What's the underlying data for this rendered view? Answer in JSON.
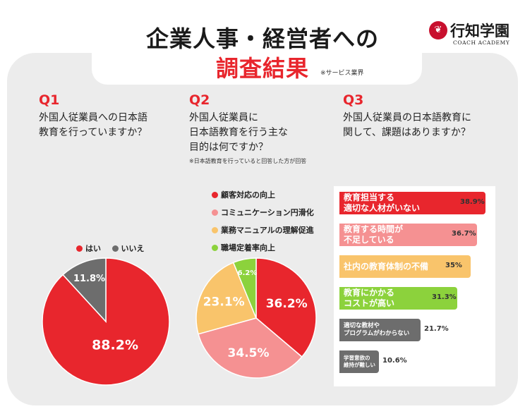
{
  "header": {
    "title_line1": "企業人事・経営者への",
    "title_line2": "調査結果",
    "title_note": "※サービス業界"
  },
  "logo": {
    "icon_name": "tree-seal-icon",
    "name": "行知学園",
    "sub": "COACH ACADEMY"
  },
  "questions": [
    {
      "label": "Q1",
      "text": "外国人従業員への日本語\n教育を行っていますか？",
      "note": ""
    },
    {
      "label": "Q2",
      "text": "外国人従業員に\n日本語教育を行う主な\n目的は何ですか？",
      "note": "※日本語教育を行っていると回答した方が回答"
    },
    {
      "label": "Q3",
      "text": "外国人従業員の日本語教育に\n関して、課題はありますか？",
      "note": ""
    }
  ],
  "chart_data": [
    {
      "type": "pie",
      "question": "Q1",
      "slices": [
        {
          "label": "はい",
          "value": 88.2,
          "display": "88.2%",
          "color": "#e8262d"
        },
        {
          "label": "いいえ",
          "value": 11.8,
          "display": "11.8%",
          "color": "#6d6d6d"
        }
      ],
      "legend_placement": "top"
    },
    {
      "type": "pie",
      "question": "Q2",
      "slices": [
        {
          "label": "顧客対応の向上",
          "value": 36.2,
          "display": "36.2%",
          "color": "#e8262d"
        },
        {
          "label": "コミュニケーション円滑化",
          "value": 34.5,
          "display": "34.5%",
          "color": "#f59192"
        },
        {
          "label": "業務マニュアルの理解促進",
          "value": 23.1,
          "display": "23.1%",
          "color": "#f9c46b"
        },
        {
          "label": "職場定着率向上",
          "value": 6.2,
          "display": "6.2%",
          "color": "#8cd23c"
        }
      ],
      "legend_placement": "top-left"
    },
    {
      "type": "bar",
      "question": "Q3",
      "orientation": "horizontal",
      "categories": [
        "教育担当する\n適切な人材がいない",
        "教育する時間が\n不足している",
        "社内の教育体制の不備",
        "教育にかかる\nコストが高い",
        "適切な教材や\nプログラムがわからない",
        "学習意欲の\n維持が難しい"
      ],
      "values": [
        38.9,
        36.7,
        35,
        31.3,
        21.7,
        10.6
      ],
      "display": [
        "38.9%",
        "36.7%",
        "35%",
        "31.3%",
        "21.7%",
        "10.6%"
      ],
      "colors": [
        "#e8262d",
        "#f59192",
        "#f9c46b",
        "#8cd23c",
        "#6d6d6d",
        "#6d6d6d"
      ],
      "xlim": [
        0,
        38.9
      ]
    }
  ]
}
